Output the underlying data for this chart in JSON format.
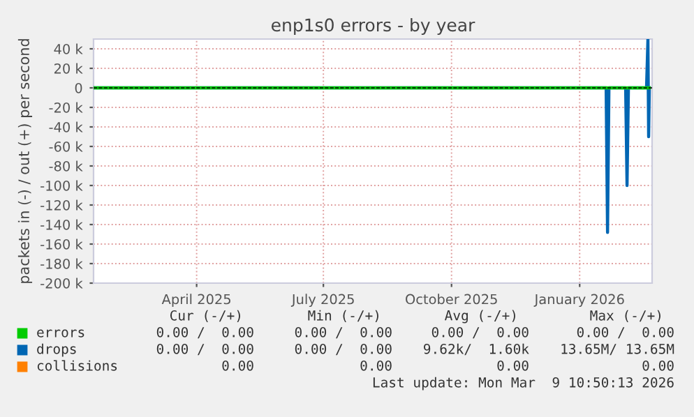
{
  "chart_data": {
    "type": "line",
    "title": "enp1s0 errors - by year",
    "ylabel": "packets in (-) / out (+) per second",
    "xlim": [
      "2025-02-01",
      "2026-03-09"
    ],
    "xticks": [
      {
        "value": "2025-04-16",
        "label": "April 2025"
      },
      {
        "value": "2025-07-16",
        "label": "July 2025"
      },
      {
        "value": "2025-10-16",
        "label": "October 2025"
      },
      {
        "value": "2026-01-16",
        "label": "January 2026"
      }
    ],
    "ylim": [
      -200000,
      50000
    ],
    "yticks": [
      {
        "value": 40000,
        "label": "40 k"
      },
      {
        "value": 20000,
        "label": "20 k"
      },
      0,
      {
        "value": -20000,
        "label": "-20 k"
      },
      {
        "value": -40000,
        "label": "-40 k"
      },
      {
        "value": -60000,
        "label": "-60 k"
      },
      {
        "value": -80000,
        "label": "-80 k"
      },
      {
        "value": -100000,
        "label": "-100 k"
      },
      {
        "value": -120000,
        "label": "-120 k"
      },
      {
        "value": -140000,
        "label": "-140 k"
      },
      {
        "value": -160000,
        "label": "-160 k"
      },
      {
        "value": -180000,
        "label": "-180 k"
      },
      {
        "value": -200000,
        "label": "-200 k"
      }
    ],
    "grid": true,
    "legend": "bottom left",
    "ref_lines": [
      {
        "axis": "y",
        "value": 0,
        "color": "#000000",
        "line_style": "dashed"
      }
    ],
    "series": [
      {
        "name": "errors",
        "color": "#00cc00",
        "x": [
          "2025-02-01",
          "2026-03-07"
        ],
        "values": [
          0,
          0
        ]
      },
      {
        "name": "drops",
        "color": "#0066b3",
        "x": [
          "2025-02-01",
          "2026-02-04",
          "2026-02-05",
          "2026-02-06",
          "2026-02-18",
          "2026-02-19",
          "2026-02-20",
          "2026-03-05",
          "2026-03-06",
          "2026-03-06T12:00",
          "2026-03-07"
        ],
        "values": [
          0,
          0,
          -148000,
          0,
          0,
          -100000,
          0,
          0,
          50000,
          -50000,
          0
        ]
      },
      {
        "name": "collisions",
        "color": "#ff8000"
      }
    ],
    "annotations": [
      "Cur (-/+)",
      "Min (-/+)",
      "Avg (-/+)",
      "Max (-/+)",
      "0.00 /  0.00",
      "0.00 /  0.00",
      "0.00 /  0.00",
      "0.00 /  0.00",
      "0.00 /  0.00",
      "0.00 /  0.00",
      "9.62k/  1.60k",
      "13.65M/ 13.65M",
      "0.00",
      "0.00",
      "0.00",
      "0.00",
      "Last update: Mon Mar  9 10:50:13 2026"
    ]
  }
}
